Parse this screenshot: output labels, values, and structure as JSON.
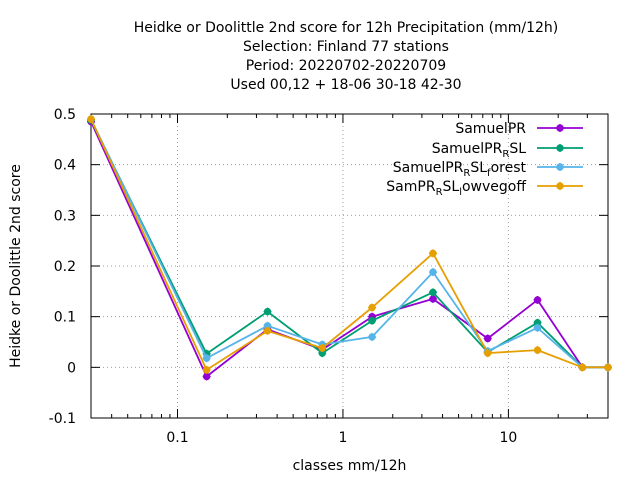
{
  "chart_data": {
    "type": "line",
    "title_lines": [
      "Heidke or Doolittle 2nd score  for 12h Precipitation (mm/12h)",
      "Selection: Finland      77 stations",
      "Period: 20220702-20220709",
      "Used  00,12  + 18-06 30-18 42-30"
    ],
    "xlabel": "classes mm/12h",
    "ylabel": "Heidke or Doolittle 2nd score",
    "x_scale": "log",
    "xlim": [
      0.03,
      40
    ],
    "ylim": [
      -0.1,
      0.5
    ],
    "x_ticks": [
      0.1,
      1,
      10
    ],
    "x_tick_labels": [
      "0.1",
      "1",
      "10"
    ],
    "y_ticks": [
      -0.1,
      0,
      0.1,
      0.2,
      0.3,
      0.4,
      0.5
    ],
    "y_tick_labels": [
      "-0.1",
      "0",
      "0.1",
      "0.2",
      "0.3",
      "0.4",
      "0.5"
    ],
    "grid": true,
    "legend_position": "top-right",
    "series": [
      {
        "label_main": "SamuelPR",
        "label_sub": "",
        "label_rest": "",
        "color": "#9400d3",
        "points": [
          [
            0.03,
            0.485
          ],
          [
            0.15,
            -0.018
          ],
          [
            0.35,
            0.075
          ],
          [
            0.75,
            0.035
          ],
          [
            1.5,
            0.1
          ],
          [
            3.5,
            0.135
          ],
          [
            7.5,
            0.057
          ],
          [
            15,
            0.133
          ],
          [
            28,
            0.0
          ],
          [
            40,
            0.0
          ]
        ]
      },
      {
        "label_main": "SamuelPR",
        "label_sub": "R",
        "label_rest": "SL",
        "color": "#009e73",
        "points": [
          [
            0.03,
            0.488
          ],
          [
            0.15,
            0.027
          ],
          [
            0.35,
            0.11
          ],
          [
            0.75,
            0.028
          ],
          [
            1.5,
            0.092
          ],
          [
            3.5,
            0.148
          ],
          [
            7.5,
            0.03
          ],
          [
            15,
            0.088
          ],
          [
            28,
            0.0
          ],
          [
            40,
            0.0
          ]
        ]
      },
      {
        "label_main": "SamuelPR",
        "label_sub": "R",
        "label_rest": "SL",
        "label_sub2": "f",
        "label_rest2": "orest",
        "color": "#56b4e9",
        "points": [
          [
            0.03,
            0.49
          ],
          [
            0.15,
            0.018
          ],
          [
            0.35,
            0.082
          ],
          [
            0.75,
            0.045
          ],
          [
            1.5,
            0.06
          ],
          [
            3.5,
            0.188
          ],
          [
            7.5,
            0.032
          ],
          [
            15,
            0.078
          ],
          [
            28,
            0.0
          ],
          [
            40,
            0.0
          ]
        ]
      },
      {
        "label_main": "SamPR",
        "label_sub": "R",
        "label_rest": "SL",
        "label_sub2": "l",
        "label_rest2": "owvegoff",
        "color": "#e69f00",
        "points": [
          [
            0.03,
            0.49
          ],
          [
            0.15,
            -0.005
          ],
          [
            0.35,
            0.072
          ],
          [
            0.75,
            0.038
          ],
          [
            1.5,
            0.118
          ],
          [
            3.5,
            0.225
          ],
          [
            7.5,
            0.028
          ],
          [
            15,
            0.034
          ],
          [
            28,
            0.0
          ],
          [
            40,
            0.0
          ]
        ]
      }
    ]
  }
}
